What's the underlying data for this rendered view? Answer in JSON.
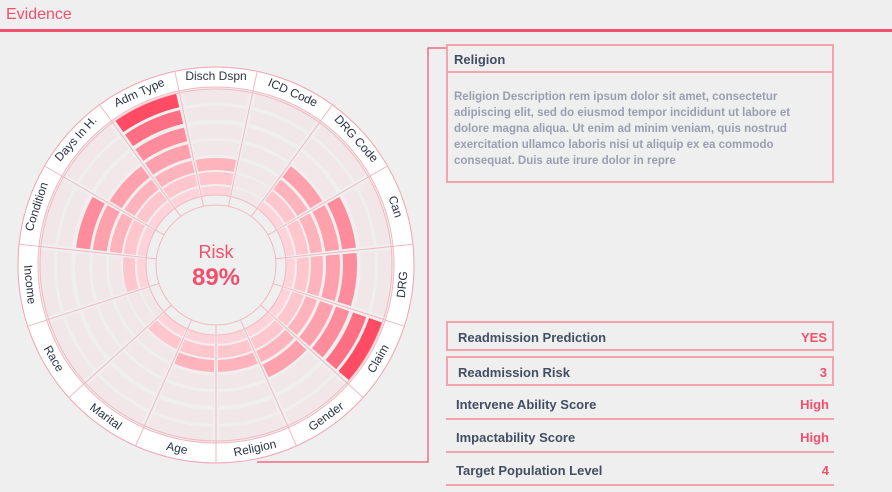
{
  "header": {
    "title": "Evidence"
  },
  "center": {
    "label": "Risk",
    "value": "89%"
  },
  "colors": {
    "accent": "#f0506e",
    "border": "#f4a3af",
    "text": "#444e63",
    "muted": "#9a9fb0"
  },
  "wheel": {
    "categories": [
      {
        "label": "Disch Dspn",
        "level": 3
      },
      {
        "label": "ICD Code",
        "level": 0
      },
      {
        "label": "DRG Code",
        "level": 4
      },
      {
        "label": "Can",
        "level": 5
      },
      {
        "label": "DRG",
        "level": 5
      },
      {
        "label": "Claim",
        "level": 7
      },
      {
        "label": "Gender",
        "level": 4
      },
      {
        "label": "Religion",
        "level": 3
      },
      {
        "label": "Age",
        "level": 3
      },
      {
        "label": "Marital",
        "level": 2
      },
      {
        "label": "Race",
        "level": 0
      },
      {
        "label": "Income",
        "level": 2
      },
      {
        "label": "Condition",
        "level": 5
      },
      {
        "label": "Days In H.",
        "level": 4
      },
      {
        "label": "Adm Type",
        "level": 7
      }
    ]
  },
  "detail": {
    "title": "Religion",
    "description": "Religion Description  rem ipsum dolor sit amet, consectetur adipiscing elit, sed do eiusmod tempor incididunt ut labore et dolore magna aliqua. Ut enim ad minim veniam, quis nostrud exercitation ullamco laboris nisi ut aliquip ex ea commodo consequat. Duis aute irure dolor in repre"
  },
  "metrics": [
    {
      "label": "Readmission Prediction",
      "value": "YES"
    },
    {
      "label": "Readmission Risk",
      "value": "3"
    },
    {
      "label": "Intervene Ability Score",
      "value": "High"
    },
    {
      "label": "Impactability Score",
      "value": "High"
    },
    {
      "label": "Target Population Level",
      "value": "4"
    }
  ]
}
